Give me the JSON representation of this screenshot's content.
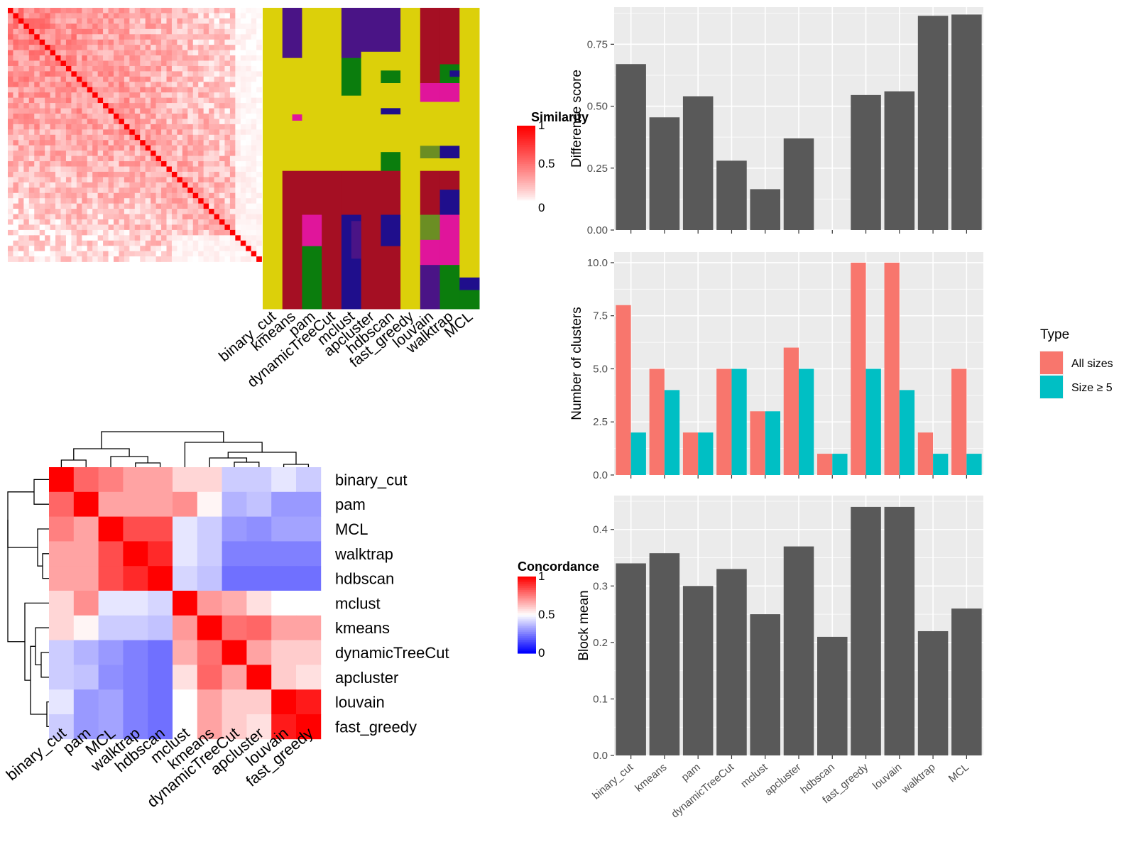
{
  "chart_data": [
    {
      "type": "heatmap",
      "legend_title": "Similarity",
      "legend_ticks": [
        "1",
        "0.5",
        "0"
      ],
      "colors": {
        "low": "#ffffff",
        "high": "#ff0000"
      }
    },
    {
      "type": "heatmap",
      "columns": [
        "binary_cut",
        "kmeans",
        "pam",
        "dynamicTreeCut",
        "mclust",
        "apcluster",
        "hdbscan",
        "fast_greedy",
        "louvain",
        "walktrap",
        "MCL"
      ],
      "colors": {
        "yellow": "#dcd00a",
        "purple": "#4a1486",
        "red": "#a50f23",
        "green": "#0b7d0d",
        "magenta": "#e0159b",
        "navy": "#1f0e8c",
        "olive": "#6b8e23"
      }
    },
    {
      "type": "heatmap",
      "legend_title": "Concordance",
      "legend_ticks": [
        "1",
        "0.5",
        "0"
      ],
      "rows": [
        "binary_cut",
        "pam",
        "MCL",
        "walktrap",
        "hdbscan",
        "mclust",
        "kmeans",
        "dynamicTreeCut",
        "apcluster",
        "louvain",
        "fast_greedy"
      ],
      "columns": [
        "binary_cut",
        "pam",
        "MCL",
        "walktrap",
        "hdbscan",
        "mclust",
        "kmeans",
        "dynamicTreeCut",
        "apcluster",
        "louvain",
        "fast_greedy"
      ],
      "values": [
        [
          1.0,
          0.8,
          0.75,
          0.68,
          0.68,
          0.58,
          0.58,
          0.4,
          0.4,
          0.45,
          0.4
        ],
        [
          0.8,
          1.0,
          0.68,
          0.68,
          0.68,
          0.72,
          0.52,
          0.35,
          0.38,
          0.3,
          0.3
        ],
        [
          0.75,
          0.68,
          1.0,
          0.85,
          0.85,
          0.45,
          0.4,
          0.3,
          0.28,
          0.32,
          0.32
        ],
        [
          0.68,
          0.68,
          0.85,
          1.0,
          0.92,
          0.45,
          0.4,
          0.25,
          0.25,
          0.25,
          0.25
        ],
        [
          0.68,
          0.68,
          0.85,
          0.92,
          1.0,
          0.42,
          0.38,
          0.22,
          0.22,
          0.22,
          0.22
        ],
        [
          0.58,
          0.72,
          0.45,
          0.45,
          0.42,
          1.0,
          0.7,
          0.66,
          0.56,
          0.5,
          0.5
        ],
        [
          0.58,
          0.52,
          0.4,
          0.4,
          0.38,
          0.7,
          1.0,
          0.78,
          0.8,
          0.68,
          0.68
        ],
        [
          0.4,
          0.35,
          0.3,
          0.25,
          0.22,
          0.66,
          0.78,
          1.0,
          0.68,
          0.6,
          0.6
        ],
        [
          0.4,
          0.38,
          0.28,
          0.25,
          0.22,
          0.56,
          0.8,
          0.68,
          1.0,
          0.6,
          0.56
        ],
        [
          0.45,
          0.3,
          0.32,
          0.25,
          0.22,
          0.5,
          0.68,
          0.6,
          0.6,
          1.0,
          0.95
        ],
        [
          0.4,
          0.3,
          0.32,
          0.25,
          0.22,
          0.5,
          0.68,
          0.6,
          0.56,
          0.95,
          1.0
        ]
      ],
      "colors": {
        "low": "#0000ff",
        "mid": "#ffffff",
        "high": "#ff0000"
      }
    },
    {
      "type": "bar",
      "ylabel": "Difference score",
      "categories": [
        "binary_cut",
        "kmeans",
        "pam",
        "dynamicTreeCut",
        "mclust",
        "apcluster",
        "hdbscan",
        "fast_greedy",
        "louvain",
        "walktrap",
        "MCL"
      ],
      "values": [
        0.67,
        0.455,
        0.54,
        0.28,
        0.165,
        0.37,
        0,
        0.545,
        0.56,
        0.865,
        0.87
      ],
      "ylim": [
        0,
        0.9
      ],
      "ticks": [
        0,
        0.25,
        0.5,
        0.75
      ],
      "tick_labels": [
        "0.00",
        "0.25",
        "0.50",
        "0.75"
      ]
    },
    {
      "type": "bar",
      "ylabel": "Number of clusters",
      "categories": [
        "binary_cut",
        "kmeans",
        "pam",
        "dynamicTreeCut",
        "mclust",
        "apcluster",
        "hdbscan",
        "fast_greedy",
        "louvain",
        "walktrap",
        "MCL"
      ],
      "series": [
        {
          "name": "All sizes",
          "values": [
            8,
            5,
            2,
            5,
            3,
            6,
            1,
            10,
            10,
            2,
            5
          ],
          "color": "#f8766d"
        },
        {
          "name": "Size ≥ 5",
          "values": [
            2,
            4,
            2,
            5,
            3,
            5,
            1,
            5,
            4,
            1,
            1
          ],
          "color": "#00bfc4"
        }
      ],
      "ylim": [
        0,
        10.5
      ],
      "ticks": [
        0,
        2.5,
        5,
        7.5,
        10
      ],
      "tick_labels": [
        "0.0",
        "2.5",
        "5.0",
        "7.5",
        "10.0"
      ],
      "legend_title": "Type",
      "legend_position": "right"
    },
    {
      "type": "bar",
      "ylabel": "Block mean",
      "categories": [
        "binary_cut",
        "kmeans",
        "pam",
        "dynamicTreeCut",
        "mclust",
        "apcluster",
        "hdbscan",
        "fast_greedy",
        "louvain",
        "walktrap",
        "MCL"
      ],
      "values": [
        0.34,
        0.358,
        0.3,
        0.33,
        0.25,
        0.37,
        0.21,
        0.44,
        0.44,
        0.22,
        0.26
      ],
      "ylim": [
        0,
        0.46
      ],
      "ticks": [
        0,
        0.1,
        0.2,
        0.3,
        0.4
      ],
      "tick_labels": [
        "0.0",
        "0.1",
        "0.2",
        "0.3",
        "0.4"
      ]
    }
  ]
}
